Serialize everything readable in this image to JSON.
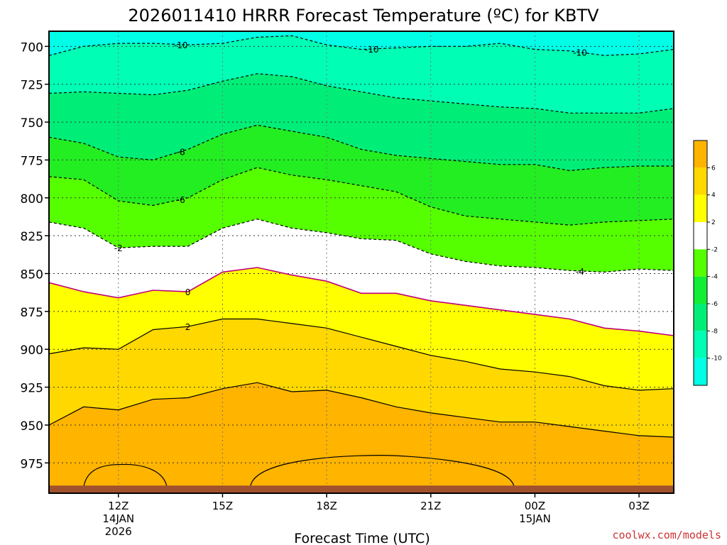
{
  "chart_data": {
    "type": "contour",
    "title": "2026011410 HRRR Forecast Temperature (ºC) for KBTV",
    "xlabel": "Forecast Time (UTC)",
    "ylabel": "",
    "y_scale": "pressure (inverted, hPa)",
    "ylim": [
      995,
      690
    ],
    "y_ticks": [
      700,
      725,
      750,
      775,
      800,
      825,
      850,
      875,
      900,
      925,
      950,
      975
    ],
    "x_hours": [
      10,
      11,
      12,
      13,
      14,
      15,
      16,
      17,
      18,
      19,
      20,
      21,
      22,
      23,
      24,
      25,
      26,
      27,
      28
    ],
    "x_ticks": [
      {
        "hour": 12,
        "label": "12Z",
        "date": "14JAN",
        "year": "2026"
      },
      {
        "hour": 15,
        "label": "15Z",
        "date": "",
        "year": ""
      },
      {
        "hour": 18,
        "label": "18Z",
        "date": "",
        "year": ""
      },
      {
        "hour": 21,
        "label": "21Z",
        "date": "",
        "year": ""
      },
      {
        "hour": 24,
        "label": "00Z",
        "date": "15JAN",
        "year": ""
      },
      {
        "hour": 27,
        "label": "03Z",
        "date": "",
        "year": ""
      }
    ],
    "grid": true,
    "ground_pressure": [
      990,
      990,
      990,
      990,
      990,
      990,
      990,
      990,
      990,
      990,
      990,
      990,
      990,
      990,
      990,
      990,
      990,
      990,
      990
    ],
    "contours": [
      {
        "level": -10,
        "pressure": [
          706,
          700,
          698,
          698,
          699,
          698,
          694,
          693,
          699,
          702,
          701,
          700,
          700,
          698,
          702,
          703,
          706,
          705,
          702
        ],
        "label": "-10"
      },
      {
        "level": -9,
        "pressure": [
          731,
          730,
          731,
          732,
          729,
          723,
          718,
          720,
          726,
          730,
          734,
          736,
          738,
          740,
          741,
          744,
          744,
          744,
          741
        ],
        "label": ""
      },
      {
        "level": -8,
        "pressure": [
          760,
          764,
          773,
          775,
          768,
          758,
          752,
          756,
          760,
          768,
          772,
          774,
          776,
          778,
          778,
          782,
          780,
          779,
          779
        ],
        "label": "-8"
      },
      {
        "level": -6,
        "pressure": [
          786,
          788,
          802,
          805,
          800,
          788,
          780,
          785,
          788,
          792,
          796,
          806,
          812,
          814,
          816,
          818,
          816,
          815,
          814
        ],
        "label": "-6"
      },
      {
        "level": -4,
        "pressure": [
          816,
          820,
          833,
          832,
          832,
          820,
          814,
          820,
          823,
          827,
          828,
          837,
          842,
          845,
          846,
          848,
          849,
          847,
          848
        ],
        "label": "-4"
      },
      {
        "level": 0,
        "pressure": [
          856,
          862,
          866,
          861,
          862,
          849,
          846,
          851,
          855,
          863,
          863,
          868,
          871,
          874,
          877,
          880,
          886,
          888,
          891
        ],
        "label": "0"
      },
      {
        "level": 2,
        "pressure": [
          903,
          899,
          900,
          887,
          885,
          880,
          880,
          883,
          886,
          892,
          898,
          904,
          908,
          913,
          915,
          918,
          924,
          927,
          926
        ],
        "label": "2"
      },
      {
        "level": 4,
        "pressure": [
          950,
          938,
          940,
          933,
          932,
          926,
          922,
          928,
          927,
          932,
          938,
          942,
          945,
          948,
          948,
          951,
          954,
          957,
          958
        ],
        "label": ""
      }
    ],
    "warm_pockets": [
      {
        "hour_range": [
          11.0,
          13.4
        ],
        "top_pressure": 976,
        "base_pressure": 991
      },
      {
        "hour_range": [
          15.8,
          23.4
        ],
        "top_pressure": 970,
        "base_pressure": 991
      }
    ],
    "colorbar": {
      "labels": [
        "6",
        "4",
        "2",
        "-2",
        "-4",
        "-6",
        "-8",
        "-10"
      ],
      "colors": [
        "#ffb400",
        "#ffd800",
        "#ffff00",
        "#ffffff",
        "#55ff00",
        "#11ee33",
        "#00ee77",
        "#00ffb4",
        "#00ffe6"
      ]
    },
    "fill_colors": {
      "below_-10": "#00ffe6",
      "-10_to_-8": "#00ffb4",
      "-8_to_-6": "#00ee77",
      "-6_to_-4": "#22ee22",
      "-4_to_-2": "#55ff00",
      "-2_to_2": "#ffffff",
      "2_to_4": "#ffff00",
      "4_to_6": "#ffd800",
      "above_6": "#ffb400",
      "ground": "#a0522d"
    },
    "contour_colors": {
      "negative": "#000000",
      "zero": "#c0007a",
      "positive": "#000000"
    }
  },
  "credit": "coolwx.com/models"
}
